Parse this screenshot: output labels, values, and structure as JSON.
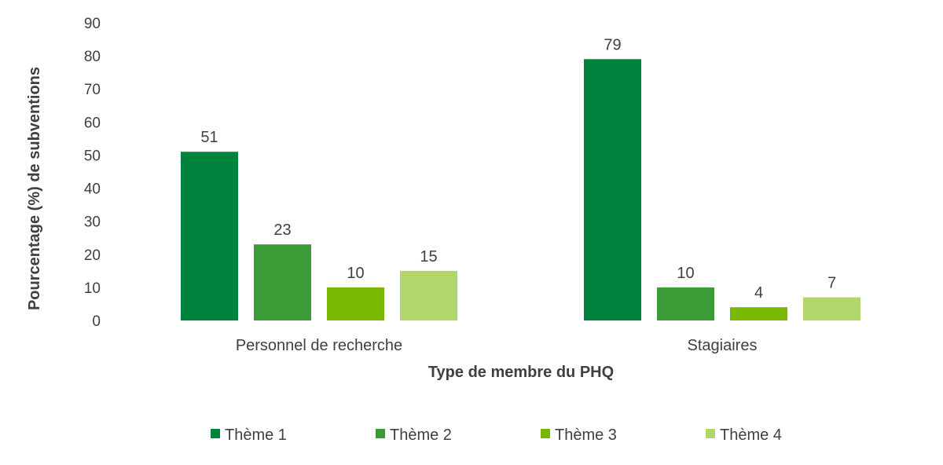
{
  "chart_data": {
    "type": "bar",
    "categories": [
      "Personnel de recherche",
      "Stagiaires"
    ],
    "series": [
      {
        "name": "Thème 1",
        "values": [
          51,
          79
        ],
        "color": "#00843D"
      },
      {
        "name": "Thème 2",
        "values": [
          23,
          10
        ],
        "color": "#3B9B37"
      },
      {
        "name": "Thème 3",
        "values": [
          10,
          4
        ],
        "color": "#78B800"
      },
      {
        "name": "Thème 4",
        "values": [
          15,
          7
        ],
        "color": "#B3D66A"
      }
    ],
    "title": "",
    "xlabel": "Type de membre du PHQ",
    "ylabel": "Pourcentage (%) de subventions",
    "ylim": [
      0,
      90
    ],
    "yticks": [
      0,
      10,
      20,
      30,
      40,
      50,
      60,
      70,
      80,
      90
    ],
    "grid": false,
    "legend": "bottom",
    "data_labels": true
  }
}
